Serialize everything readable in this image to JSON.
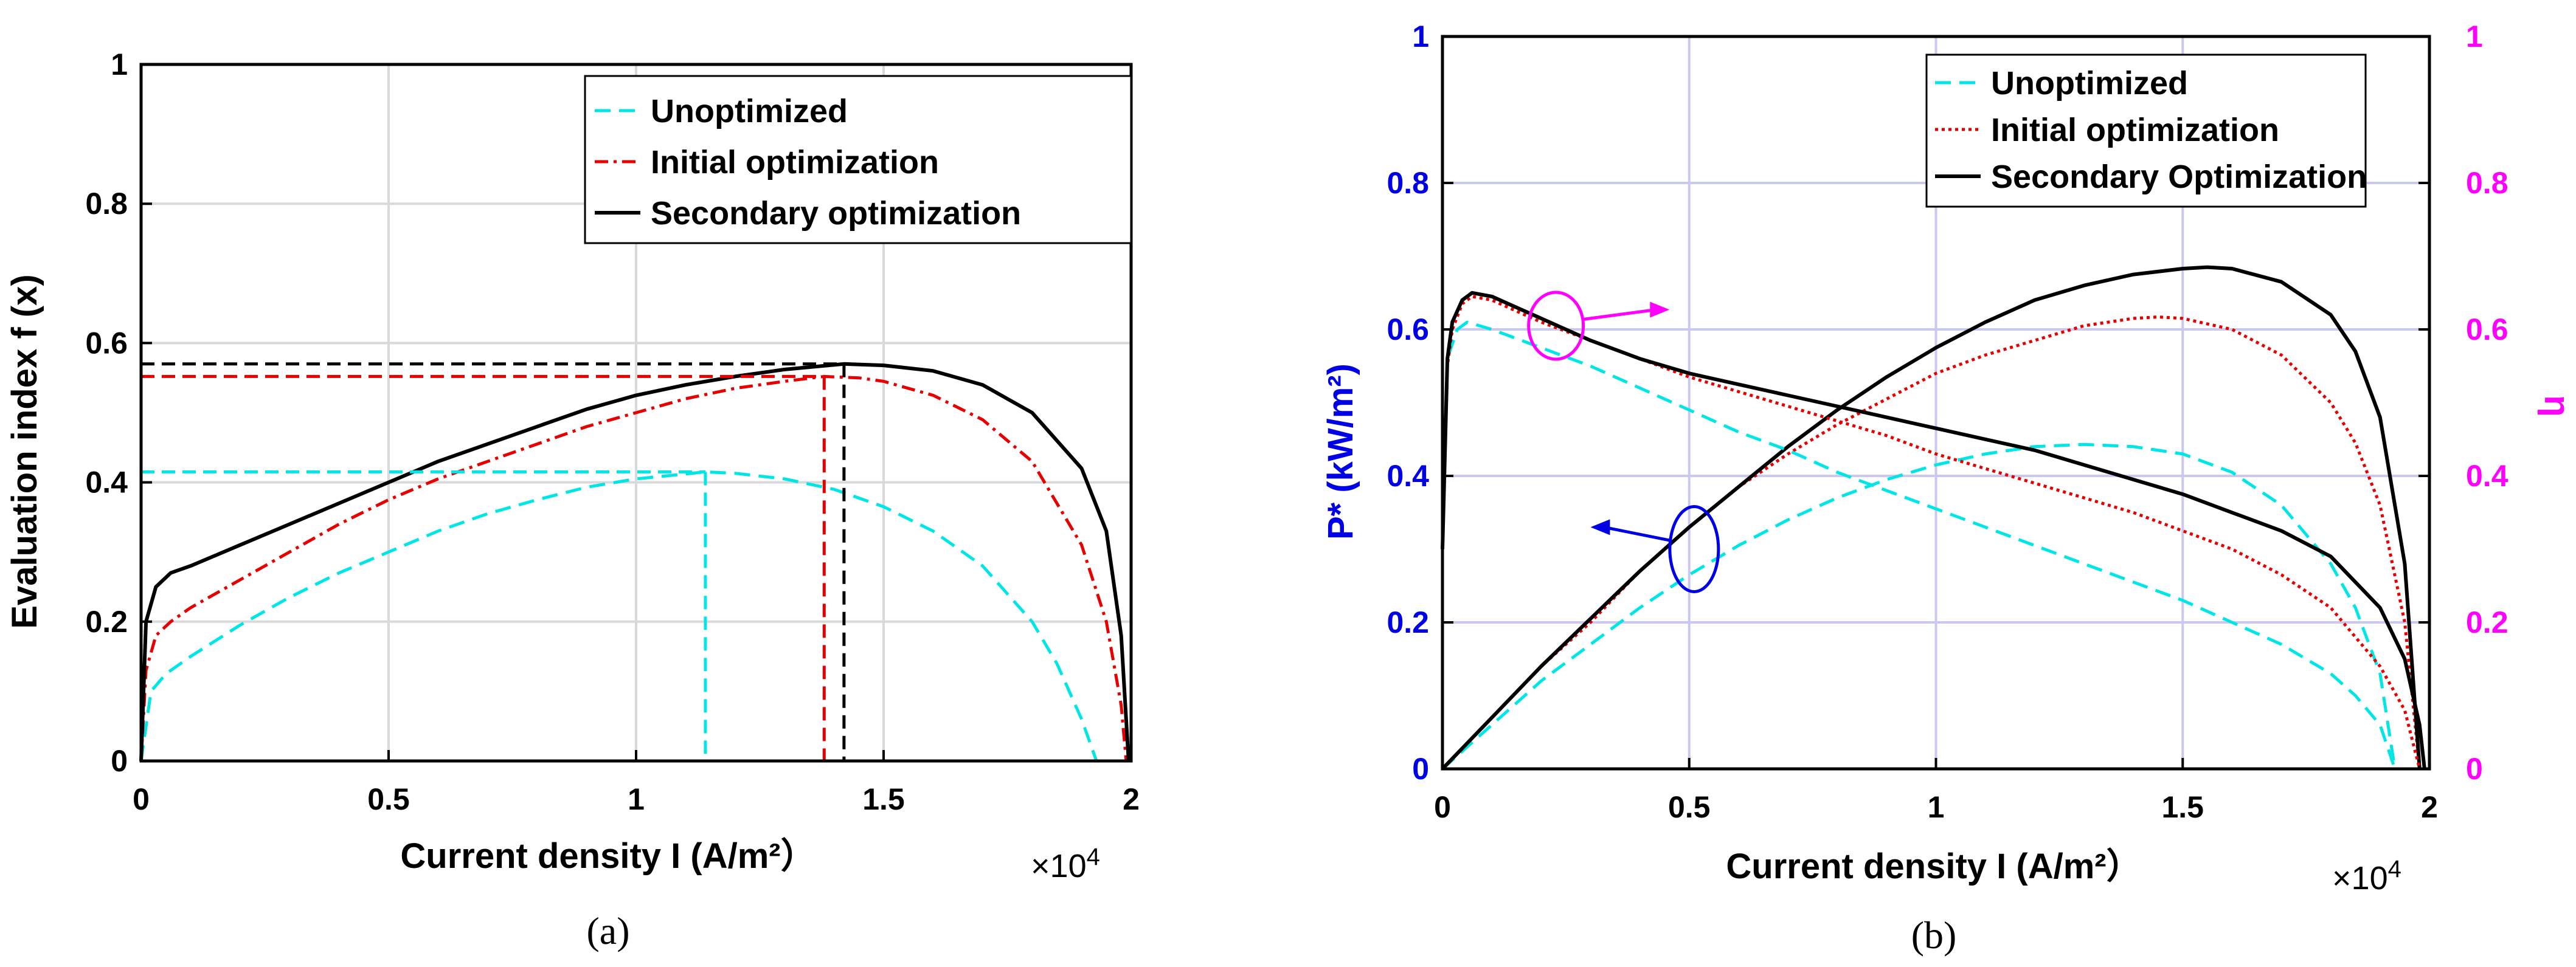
{
  "colors": {
    "unoptimized": "#00e5e5",
    "initial": "#e60000",
    "secondary": "#000000",
    "left_axis_b": "#0000e6",
    "right_axis_b": "#ff00ff",
    "grid_a": "#d9d9d9",
    "grid_b": "#c8c8f0"
  },
  "chart_data": [
    {
      "id": "a",
      "type": "line",
      "caption": "(a)",
      "xlabel": "Current density I (A/m²）",
      "ylabel": "Evaluation index f (x)",
      "x_multiplier": "×10",
      "x_multiplier_exp": "4",
      "xlim": [
        0,
        2
      ],
      "ylim": [
        0,
        1
      ],
      "xticks": [
        0,
        0.5,
        1,
        1.5,
        2
      ],
      "xtick_labels": [
        "0",
        "0.5",
        "1",
        "1.5",
        "2"
      ],
      "yticks": [
        0,
        0.2,
        0.4,
        0.6,
        0.8,
        1
      ],
      "ytick_labels": [
        "0",
        "0.2",
        "0.4",
        "0.6",
        "0.8",
        "1"
      ],
      "grid": true,
      "legend_position": "top-right",
      "series": [
        {
          "name": "Unoptimized",
          "key": "unoptimized",
          "style": "dashed",
          "x": [
            0,
            0.02,
            0.05,
            0.1,
            0.2,
            0.3,
            0.4,
            0.5,
            0.6,
            0.7,
            0.8,
            0.9,
            1.0,
            1.1,
            1.14,
            1.2,
            1.3,
            1.4,
            1.5,
            1.6,
            1.7,
            1.8,
            1.85,
            1.9,
            1.93
          ],
          "y": [
            0,
            0.1,
            0.125,
            0.15,
            0.195,
            0.235,
            0.27,
            0.3,
            0.33,
            0.355,
            0.375,
            0.393,
            0.405,
            0.412,
            0.415,
            0.413,
            0.405,
            0.39,
            0.365,
            0.33,
            0.28,
            0.2,
            0.14,
            0.06,
            0
          ]
        },
        {
          "name": "Initial optimization",
          "key": "initial",
          "style": "dashdot",
          "x": [
            0,
            0.01,
            0.03,
            0.06,
            0.1,
            0.2,
            0.3,
            0.4,
            0.5,
            0.6,
            0.7,
            0.8,
            0.9,
            1.0,
            1.1,
            1.2,
            1.3,
            1.38,
            1.45,
            1.5,
            1.6,
            1.7,
            1.8,
            1.9,
            1.95,
            1.98,
            1.99
          ],
          "y": [
            0,
            0.13,
            0.18,
            0.2,
            0.22,
            0.26,
            0.3,
            0.34,
            0.375,
            0.405,
            0.43,
            0.455,
            0.48,
            0.5,
            0.52,
            0.535,
            0.545,
            0.552,
            0.55,
            0.545,
            0.525,
            0.49,
            0.43,
            0.31,
            0.2,
            0.08,
            0
          ]
        },
        {
          "name": "Secondary optimization",
          "key": "secondary",
          "style": "solid",
          "x": [
            0,
            0.01,
            0.03,
            0.06,
            0.1,
            0.2,
            0.3,
            0.4,
            0.5,
            0.6,
            0.7,
            0.8,
            0.9,
            1.0,
            1.1,
            1.2,
            1.3,
            1.42,
            1.5,
            1.6,
            1.7,
            1.8,
            1.9,
            1.95,
            1.98,
            1.995
          ],
          "y": [
            0,
            0.2,
            0.25,
            0.27,
            0.28,
            0.31,
            0.34,
            0.37,
            0.4,
            0.43,
            0.455,
            0.48,
            0.505,
            0.525,
            0.54,
            0.552,
            0.562,
            0.57,
            0.568,
            0.56,
            0.54,
            0.5,
            0.42,
            0.33,
            0.18,
            0
          ]
        }
      ],
      "reference_lines": [
        {
          "key": "unoptimized",
          "x": 1.14,
          "y": 0.415
        },
        {
          "key": "initial",
          "x": 1.38,
          "y": 0.552
        },
        {
          "key": "secondary",
          "x": 1.42,
          "y": 0.57
        }
      ]
    },
    {
      "id": "b",
      "type": "line",
      "caption": "(b)",
      "xlabel": "Current density I (A/m²）",
      "ylabel": "P* (kW/m²)",
      "ylabel_right": "η",
      "x_multiplier": "×10",
      "x_multiplier_exp": "4",
      "xlim": [
        0,
        2
      ],
      "ylim": [
        0,
        1
      ],
      "ylim_right": [
        0,
        1
      ],
      "xticks": [
        0,
        0.5,
        1,
        1.5,
        2
      ],
      "xtick_labels": [
        "0",
        "0.5",
        "1",
        "1.5",
        "2"
      ],
      "yticks": [
        0,
        0.2,
        0.4,
        0.6,
        0.8,
        1
      ],
      "ytick_labels": [
        "0",
        "0.2",
        "0.4",
        "0.6",
        "0.8",
        "1"
      ],
      "ytick_labels_right": [
        "0",
        "0.2",
        "0.4",
        "0.6",
        "0.8",
        "1"
      ],
      "grid": true,
      "legend_position": "top-right",
      "series": [
        {
          "name": "Unoptimized",
          "key": "unoptimized",
          "style": "dashed",
          "quantity": "power",
          "x": [
            0,
            0.1,
            0.2,
            0.3,
            0.4,
            0.5,
            0.6,
            0.7,
            0.8,
            0.9,
            1.0,
            1.1,
            1.2,
            1.3,
            1.4,
            1.5,
            1.6,
            1.7,
            1.8,
            1.85,
            1.9,
            1.93
          ],
          "y": [
            0,
            0.06,
            0.12,
            0.17,
            0.22,
            0.265,
            0.305,
            0.34,
            0.37,
            0.395,
            0.415,
            0.43,
            0.44,
            0.443,
            0.44,
            0.43,
            0.405,
            0.36,
            0.28,
            0.22,
            0.13,
            0
          ]
        },
        {
          "name": "Initial optimization",
          "key": "initial",
          "style": "dotted",
          "quantity": "power",
          "x": [
            0,
            0.1,
            0.2,
            0.3,
            0.4,
            0.5,
            0.6,
            0.7,
            0.8,
            0.9,
            1.0,
            1.1,
            1.2,
            1.3,
            1.4,
            1.45,
            1.5,
            1.6,
            1.7,
            1.8,
            1.85,
            1.9,
            1.95,
            1.98
          ],
          "y": [
            0,
            0.07,
            0.14,
            0.2,
            0.27,
            0.33,
            0.385,
            0.43,
            0.47,
            0.505,
            0.54,
            0.565,
            0.585,
            0.605,
            0.615,
            0.617,
            0.615,
            0.6,
            0.565,
            0.5,
            0.445,
            0.36,
            0.2,
            0
          ]
        },
        {
          "name": "Secondary Optimization",
          "key": "secondary",
          "style": "solid",
          "quantity": "power",
          "x": [
            0,
            0.1,
            0.2,
            0.3,
            0.4,
            0.5,
            0.6,
            0.7,
            0.8,
            0.9,
            1.0,
            1.1,
            1.2,
            1.3,
            1.4,
            1.5,
            1.55,
            1.6,
            1.7,
            1.8,
            1.85,
            1.9,
            1.95,
            1.98
          ],
          "y": [
            0,
            0.07,
            0.14,
            0.205,
            0.27,
            0.33,
            0.385,
            0.44,
            0.49,
            0.535,
            0.575,
            0.61,
            0.64,
            0.66,
            0.675,
            0.683,
            0.685,
            0.683,
            0.665,
            0.62,
            0.57,
            0.48,
            0.28,
            0
          ]
        },
        {
          "name": "Unoptimized",
          "key": "unoptimized",
          "style": "dashed",
          "quantity": "efficiency",
          "x": [
            0,
            0.01,
            0.03,
            0.05,
            0.1,
            0.2,
            0.3,
            0.4,
            0.5,
            0.6,
            0.7,
            0.8,
            0.9,
            1.0,
            1.1,
            1.2,
            1.3,
            1.4,
            1.5,
            1.6,
            1.7,
            1.8,
            1.85,
            1.9,
            1.93
          ],
          "y": [
            0.3,
            0.56,
            0.6,
            0.61,
            0.6,
            0.575,
            0.55,
            0.52,
            0.49,
            0.46,
            0.435,
            0.405,
            0.38,
            0.355,
            0.33,
            0.305,
            0.28,
            0.255,
            0.23,
            0.2,
            0.17,
            0.13,
            0.1,
            0.06,
            0
          ]
        },
        {
          "name": "Initial optimization",
          "key": "initial",
          "style": "dotted",
          "quantity": "efficiency",
          "x": [
            0,
            0.01,
            0.02,
            0.04,
            0.06,
            0.1,
            0.2,
            0.3,
            0.4,
            0.5,
            0.6,
            0.7,
            0.8,
            0.9,
            1.0,
            1.1,
            1.2,
            1.3,
            1.4,
            1.5,
            1.6,
            1.7,
            1.8,
            1.9,
            1.95,
            1.98
          ],
          "y": [
            0.3,
            0.55,
            0.6,
            0.635,
            0.645,
            0.64,
            0.61,
            0.585,
            0.56,
            0.535,
            0.515,
            0.495,
            0.475,
            0.455,
            0.43,
            0.41,
            0.39,
            0.37,
            0.35,
            0.325,
            0.3,
            0.265,
            0.22,
            0.14,
            0.08,
            0
          ]
        },
        {
          "name": "Secondary Optimization",
          "key": "secondary",
          "style": "solid",
          "quantity": "efficiency",
          "x": [
            0,
            0.01,
            0.02,
            0.04,
            0.06,
            0.1,
            0.2,
            0.3,
            0.4,
            0.5,
            0.6,
            0.7,
            0.8,
            0.9,
            1.0,
            1.1,
            1.2,
            1.3,
            1.4,
            1.5,
            1.6,
            1.7,
            1.8,
            1.9,
            1.95,
            1.98,
            1.99
          ],
          "y": [
            0.3,
            0.56,
            0.61,
            0.64,
            0.65,
            0.645,
            0.615,
            0.585,
            0.56,
            0.54,
            0.525,
            0.51,
            0.495,
            0.48,
            0.465,
            0.45,
            0.435,
            0.415,
            0.395,
            0.375,
            0.35,
            0.325,
            0.29,
            0.22,
            0.15,
            0.06,
            0
          ]
        }
      ],
      "annotations": [
        {
          "type": "ellipse-arrow",
          "key": "magenta",
          "cx": 0.23,
          "cy": 0.605,
          "to_x": 0.46,
          "to_y": 0.627,
          "meaning": "efficiency curves read on right axis"
        },
        {
          "type": "ellipse-arrow",
          "key": "blue",
          "cx": 0.51,
          "cy": 0.3,
          "to_x": 0.3,
          "to_y": 0.33,
          "meaning": "power curves read on left axis"
        }
      ]
    }
  ]
}
